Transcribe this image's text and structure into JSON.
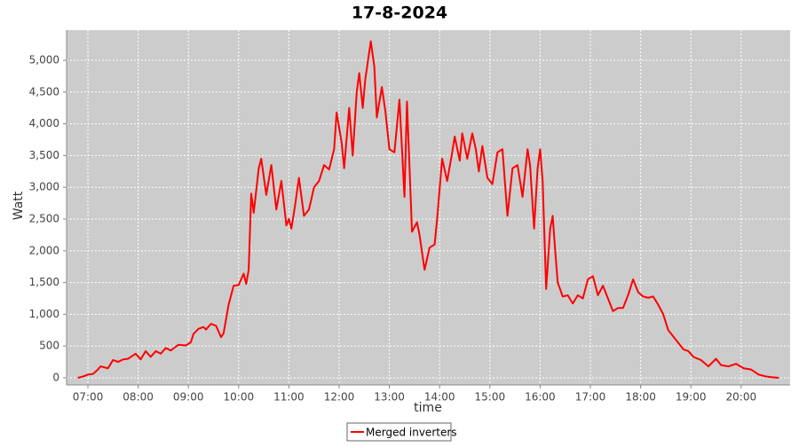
{
  "chart_data": {
    "type": "line",
    "title": "17-8-2024",
    "x_label": "time",
    "y_label": "Watt",
    "x": [
      6.8,
      6.9,
      7.0,
      7.1,
      7.2,
      7.25,
      7.4,
      7.5,
      7.6,
      7.7,
      7.8,
      7.95,
      8.05,
      8.15,
      8.25,
      8.35,
      8.45,
      8.55,
      8.65,
      8.8,
      8.95,
      9.05,
      9.1,
      9.2,
      9.3,
      9.35,
      9.45,
      9.55,
      9.65,
      9.7,
      9.8,
      9.9,
      10.0,
      10.1,
      10.15,
      10.2,
      10.25,
      10.3,
      10.4,
      10.45,
      10.55,
      10.65,
      10.75,
      10.85,
      10.95,
      11.0,
      11.05,
      11.12,
      11.2,
      11.3,
      11.4,
      11.5,
      11.6,
      11.7,
      11.8,
      11.9,
      11.95,
      12.05,
      12.1,
      12.2,
      12.27,
      12.35,
      12.4,
      12.47,
      12.52,
      12.63,
      12.7,
      12.75,
      12.85,
      12.92,
      13.0,
      13.1,
      13.2,
      13.3,
      13.35,
      13.45,
      13.55,
      13.6,
      13.7,
      13.8,
      13.9,
      13.95,
      14.05,
      14.15,
      14.25,
      14.3,
      14.4,
      14.45,
      14.55,
      14.65,
      14.72,
      14.78,
      14.85,
      14.95,
      15.05,
      15.15,
      15.25,
      15.35,
      15.45,
      15.55,
      15.65,
      15.75,
      15.8,
      15.88,
      15.95,
      16.0,
      16.05,
      16.12,
      16.2,
      16.25,
      16.3,
      16.35,
      16.45,
      16.55,
      16.65,
      16.75,
      16.85,
      16.95,
      17.05,
      17.15,
      17.25,
      17.35,
      17.45,
      17.55,
      17.65,
      17.75,
      17.85,
      17.95,
      18.05,
      18.15,
      18.25,
      18.35,
      18.45,
      18.55,
      18.7,
      18.85,
      18.95,
      19.05,
      19.2,
      19.35,
      19.5,
      19.6,
      19.75,
      19.9,
      20.05,
      20.2,
      20.35,
      20.5,
      20.6,
      20.75
    ],
    "series": [
      {
        "name": "Merged inverters",
        "color": "#ff0000",
        "values": [
          0,
          20,
          50,
          60,
          130,
          180,
          150,
          280,
          250,
          290,
          300,
          380,
          290,
          420,
          330,
          420,
          380,
          470,
          430,
          520,
          510,
          560,
          690,
          770,
          800,
          760,
          850,
          820,
          640,
          700,
          1150,
          1450,
          1460,
          1640,
          1480,
          1700,
          2900,
          2600,
          3300,
          3450,
          2880,
          3350,
          2650,
          3100,
          2400,
          2500,
          2350,
          2700,
          3150,
          2550,
          2650,
          3000,
          3100,
          3350,
          3280,
          3600,
          4180,
          3700,
          3300,
          4250,
          3500,
          4500,
          4800,
          4250,
          4700,
          5300,
          4900,
          4100,
          4580,
          4200,
          3600,
          3550,
          4380,
          2850,
          4350,
          2300,
          2450,
          2250,
          1700,
          2050,
          2100,
          2500,
          3450,
          3100,
          3550,
          3800,
          3420,
          3850,
          3450,
          3850,
          3600,
          3250,
          3650,
          3150,
          3050,
          3550,
          3600,
          2550,
          3300,
          3350,
          2850,
          3600,
          3350,
          2350,
          3300,
          3600,
          3100,
          1400,
          2350,
          2550,
          2000,
          1500,
          1280,
          1300,
          1170,
          1300,
          1250,
          1550,
          1600,
          1300,
          1450,
          1250,
          1050,
          1100,
          1100,
          1300,
          1550,
          1350,
          1280,
          1260,
          1280,
          1150,
          1000,
          750,
          600,
          450,
          420,
          330,
          280,
          180,
          300,
          200,
          180,
          220,
          150,
          130,
          50,
          20,
          10,
          0
        ]
      }
    ],
    "xlim": [
      6.576,
      20.975
    ],
    "xticks": [
      {
        "value": 7,
        "label": "07:00"
      },
      {
        "value": 8,
        "label": "08:00"
      },
      {
        "value": 9,
        "label": "09:00"
      },
      {
        "value": 10,
        "label": "10:00"
      },
      {
        "value": 11,
        "label": "11:00"
      },
      {
        "value": 12,
        "label": "12:00"
      },
      {
        "value": 13,
        "label": "13:00"
      },
      {
        "value": 14,
        "label": "14:00"
      },
      {
        "value": 15,
        "label": "15:00"
      },
      {
        "value": 16,
        "label": "16:00"
      },
      {
        "value": 17,
        "label": "17:00"
      },
      {
        "value": 18,
        "label": "18:00"
      },
      {
        "value": 19,
        "label": "19:00"
      },
      {
        "value": 20,
        "label": "20:00"
      }
    ],
    "ylim": [
      -112,
      5475
    ],
    "yticks": [
      0,
      500,
      {
        "value": 1000,
        "label": "1,000"
      },
      {
        "value": 1500,
        "label": "1,500"
      },
      {
        "value": 2000,
        "label": "2,000"
      },
      {
        "value": 2500,
        "label": "2,500"
      },
      {
        "value": 3000,
        "label": "3,000"
      },
      {
        "value": 3500,
        "label": "3,500"
      },
      {
        "value": 4000,
        "label": "4,000"
      },
      {
        "value": 4500,
        "label": "4,500"
      },
      {
        "value": 5000,
        "label": "5,000"
      }
    ],
    "grid": true
  }
}
